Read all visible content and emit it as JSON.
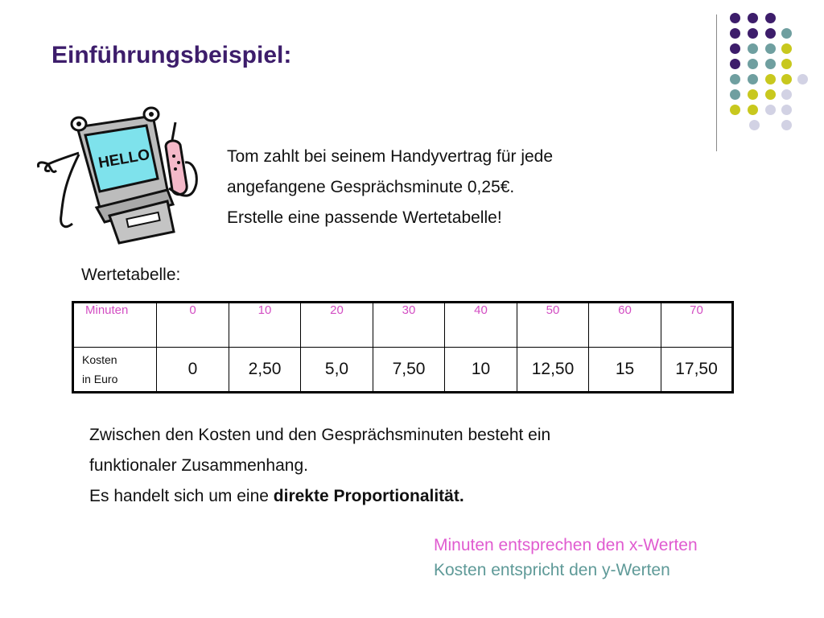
{
  "colors": {
    "title": "#3d1d6b",
    "purple": "#3d1d6b",
    "teal": "#6f9fa0",
    "yellow": "#c8c81e",
    "lavender": "#d2d2e4",
    "pink": "#d34ec3",
    "teal_text": "#5f9a98"
  },
  "slide": {
    "title": "Einführungsbeispiel:"
  },
  "illustration": {
    "icon": "hello-computer-phone-icon",
    "screen_text": "HELLO"
  },
  "intro": {
    "line1": "Tom zahlt bei seinem Handyvertrag für jede",
    "line2": "angefangene Gesprächsminute 0,25€.",
    "line3": "Erstelle eine passende Wertetabelle!"
  },
  "table": {
    "label": "Wertetabelle:",
    "row1_header": "Minuten",
    "minuten": [
      "0",
      "10",
      "20",
      "30",
      "40",
      "50",
      "60",
      "70"
    ],
    "row2_header_line1": "Kosten",
    "row2_header_line2": "in Euro",
    "kosten": [
      "0",
      "2,50",
      "5,0",
      "7,50",
      "10",
      "12,50",
      "15",
      "17,50"
    ]
  },
  "conclusion": {
    "line1": "Zwischen den Kosten und den Gesprächsminuten besteht ein",
    "line2": "funktionaler Zusammenhang.",
    "line3_prefix": "Es handelt sich um eine ",
    "line3_bold": "direkte Proportionalität."
  },
  "notes": {
    "x_note": "Minuten entsprechen den x-Werten",
    "y_note": "Kosten entspricht den y-Werten"
  }
}
